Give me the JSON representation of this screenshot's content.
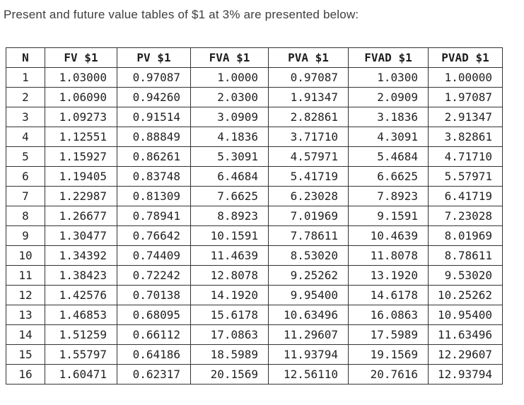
{
  "header": {
    "title": "Present and future value tables of $1 at 3% are presented below:"
  },
  "table": {
    "columns": [
      "N",
      "FV $1",
      "PV $1",
      "FVA $1",
      "PVA $1",
      "FVAD $1",
      "PVAD $1"
    ],
    "rows": [
      [
        "1",
        "1.03000",
        "0.97087",
        "1.0000",
        "0.97087",
        "1.0300",
        "1.00000"
      ],
      [
        "2",
        "1.06090",
        "0.94260",
        "2.0300",
        "1.91347",
        "2.0909",
        "1.97087"
      ],
      [
        "3",
        "1.09273",
        "0.91514",
        "3.0909",
        "2.82861",
        "3.1836",
        "2.91347"
      ],
      [
        "4",
        "1.12551",
        "0.88849",
        "4.1836",
        "3.71710",
        "4.3091",
        "3.82861"
      ],
      [
        "5",
        "1.15927",
        "0.86261",
        "5.3091",
        "4.57971",
        "5.4684",
        "4.71710"
      ],
      [
        "6",
        "1.19405",
        "0.83748",
        "6.4684",
        "5.41719",
        "6.6625",
        "5.57971"
      ],
      [
        "7",
        "1.22987",
        "0.81309",
        "7.6625",
        "6.23028",
        "7.8923",
        "6.41719"
      ],
      [
        "8",
        "1.26677",
        "0.78941",
        "8.8923",
        "7.01969",
        "9.1591",
        "7.23028"
      ],
      [
        "9",
        "1.30477",
        "0.76642",
        "10.1591",
        "7.78611",
        "10.4639",
        "8.01969"
      ],
      [
        "10",
        "1.34392",
        "0.74409",
        "11.4639",
        "8.53020",
        "11.8078",
        "8.78611"
      ],
      [
        "11",
        "1.38423",
        "0.72242",
        "12.8078",
        "9.25262",
        "13.1920",
        "9.53020"
      ],
      [
        "12",
        "1.42576",
        "0.70138",
        "14.1920",
        "9.95400",
        "14.6178",
        "10.25262"
      ],
      [
        "13",
        "1.46853",
        "0.68095",
        "15.6178",
        "10.63496",
        "16.0863",
        "10.95400"
      ],
      [
        "14",
        "1.51259",
        "0.66112",
        "17.0863",
        "11.29607",
        "17.5989",
        "11.63496"
      ],
      [
        "15",
        "1.55797",
        "0.64186",
        "18.5989",
        "11.93794",
        "19.1569",
        "12.29607"
      ],
      [
        "16",
        "1.60471",
        "0.62317",
        "20.1569",
        "12.56110",
        "20.7616",
        "12.93794"
      ]
    ]
  },
  "colors": {
    "background": "#ffffff",
    "title_text": "#3d3d3d",
    "table_text": "#222222",
    "border": "#333333"
  }
}
